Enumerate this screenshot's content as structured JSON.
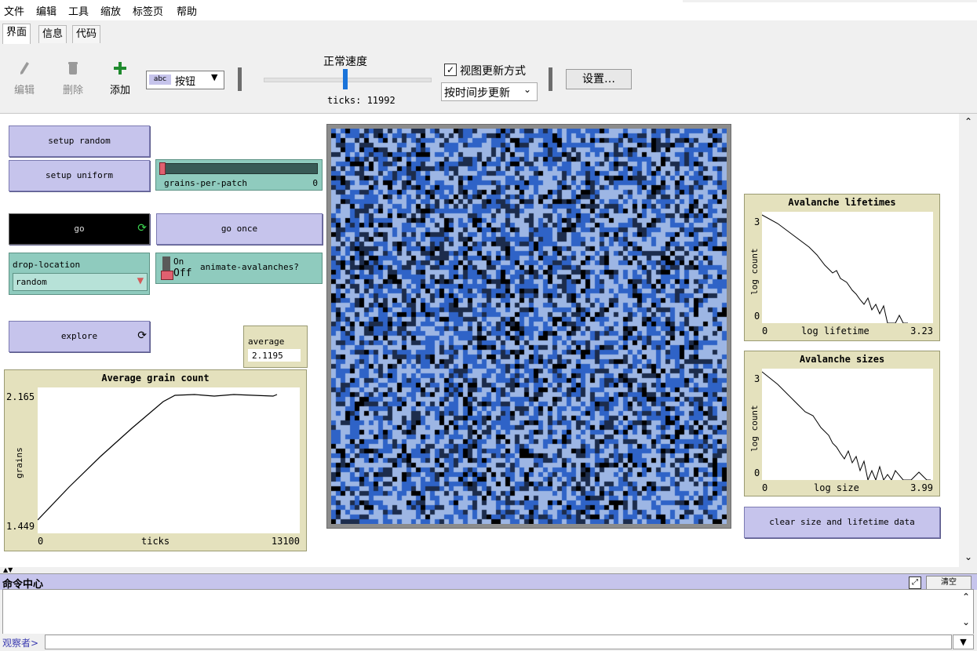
{
  "menu": [
    "文件",
    "编辑",
    "工具",
    "缩放",
    "标签页",
    "帮助"
  ],
  "tabs": [
    "界面",
    "信息",
    "代码"
  ],
  "toolbar": {
    "edit_label": "编辑",
    "delete_label": "删除",
    "add_label": "添加",
    "widget_type": "按钮",
    "widget_type_icon_text": "abc",
    "speed_label": "正常速度",
    "ticks_text": "ticks: 11992",
    "view_updates_label": "视图更新方式",
    "view_updates_checked": true,
    "update_mode": "按时间步更新",
    "settings_label": "设置…"
  },
  "widgets": {
    "setup_random": "setup random",
    "setup_uniform": "setup uniform",
    "grains_slider_label": "grains-per-patch",
    "grains_slider_value": "0",
    "go": "go",
    "go_once": "go once",
    "drop_location_label": "drop-location",
    "drop_location_value": "random",
    "switch_on": "On",
    "switch_off": "Off",
    "animate_label": "animate-avalanches?",
    "explore": "explore",
    "average_label": "average",
    "average_value": "2.1195",
    "clear_button": "clear size and lifetime data"
  },
  "plots": {
    "avg": {
      "title": "Average grain count",
      "ylabel": "grains",
      "xlabel": "ticks",
      "ymax": "2.165",
      "ymin": "1.449",
      "xmin": "0",
      "xmax": "13100"
    },
    "lifetimes": {
      "title": "Avalanche lifetimes",
      "ylabel": "log count",
      "xlabel": "log lifetime",
      "ymax": "3",
      "ymin": "0",
      "xmin": "0",
      "xmax": "3.23"
    },
    "sizes": {
      "title": "Avalanche sizes",
      "ylabel": "log count",
      "xlabel": "log size",
      "ymax": "3",
      "ymin": "0",
      "xmin": "0",
      "xmax": "3.99"
    }
  },
  "command_center": {
    "title": "命令中心",
    "clear_label": "清空",
    "observer_prompt": "观察者>"
  },
  "colors": {
    "patch_dark": "#1c2c4c",
    "patch_mid": "#2f63c7",
    "patch_light": "#9db6e4",
    "patch_black": "#000000",
    "button": "#c6c4ec",
    "green_widget": "#8fcbbe",
    "plot_bg": "#e4e1bd"
  }
}
